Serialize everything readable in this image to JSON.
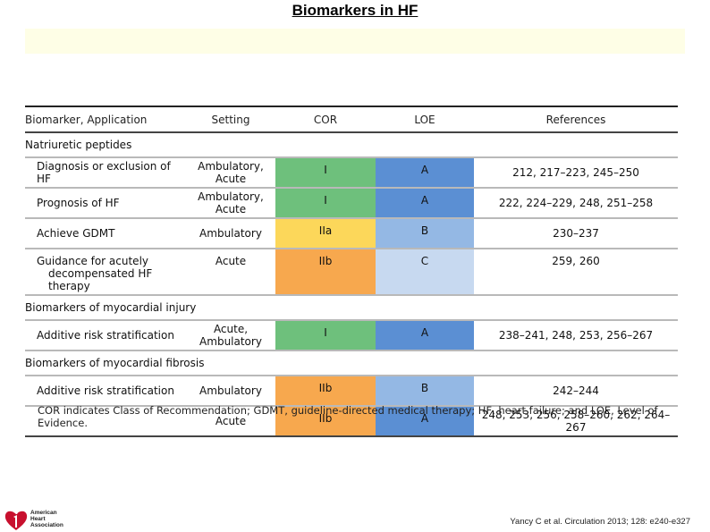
{
  "slide": {
    "title": "Biomarkers in HF",
    "footnote": "COR indicates Class of Recommendation; GDMT, guideline-directed medical therapy; HF, heart failure; and LOE, Level of Evidence.",
    "citation": "Yancy C et al. Circulation 2013; 128: e240-e327",
    "logo": {
      "line1": "American",
      "line2": "Heart",
      "line3": "Association",
      "icon": "heart-torch-logo"
    }
  },
  "table": {
    "headers": [
      "Biomarker, Application",
      "Setting",
      "COR",
      "LOE",
      "References"
    ],
    "sections": [
      {
        "name": "Natriuretic peptides"
      },
      {
        "name": "Biomarkers of myocardial injury"
      },
      {
        "name": "Biomarkers of myocardial fibrosis"
      }
    ],
    "rows": [
      {
        "application": "Diagnosis or exclusion of HF",
        "setting": "Ambulatory, Acute",
        "cor": "I",
        "loe": "A",
        "refs": "212, 217–223, 245–250"
      },
      {
        "application": "Prognosis of HF",
        "setting": "Ambulatory, Acute",
        "cor": "I",
        "loe": "A",
        "refs": "222, 224–229, 248, 251–258"
      },
      {
        "application": "Achieve GDMT",
        "setting": "Ambulatory",
        "cor": "IIa",
        "loe": "B",
        "refs": "230–237"
      },
      {
        "application_line1": "Guidance for acutely",
        "application_line2": "decompensated HF therapy",
        "setting": "Acute",
        "cor": "IIb",
        "loe": "C",
        "refs": "259, 260"
      },
      {
        "application": "Additive risk stratification",
        "setting": "Acute, Ambulatory",
        "cor": "I",
        "loe": "A",
        "refs": "238–241, 248, 253, 256–267"
      },
      {
        "application": "Additive risk stratification",
        "setting": "Ambulatory",
        "cor": "IIb",
        "loe": "B",
        "refs": "242–244"
      },
      {
        "application": "",
        "setting": "Acute",
        "cor": "IIb",
        "loe": "A",
        "refs": "248, 253, 256, 258–260, 262, 264–267"
      }
    ]
  },
  "colors": {
    "cor_I": "#6ec07c",
    "cor_IIa": "#fcd75a",
    "cor_IIb": "#f7a84e",
    "loe_A": "#5b8fd3",
    "loe_B": "#94b8e4",
    "loe_C": "#c7d9f0",
    "title_band": "#fefee6",
    "logo_red": "#c8102e"
  }
}
